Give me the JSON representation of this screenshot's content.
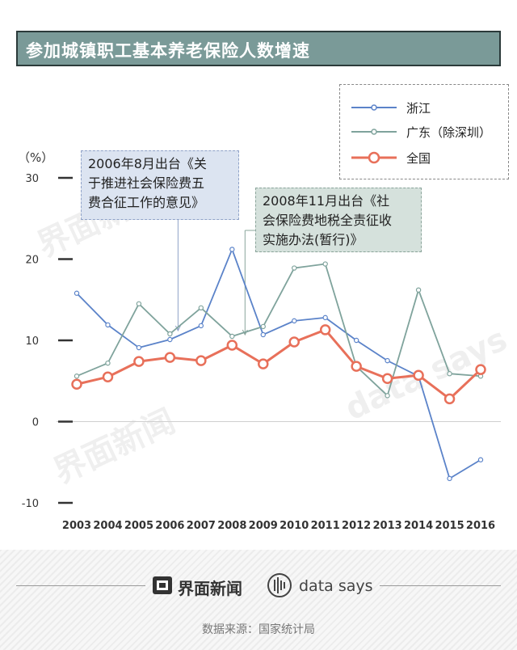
{
  "header": {
    "title": "参加城镇职工基本养老保险人数增速"
  },
  "unit_label": "（%）",
  "watermarks": [
    "界面新闻",
    "data says"
  ],
  "annotations": [
    {
      "text_lines": [
        "2006年8月出台《关",
        "于推进社会保险费五",
        "费合征工作的意见》"
      ]
    },
    {
      "text_lines": [
        "2008年11月出台《社",
        "会保险费地税全责征收",
        "实施办法(暂行)》"
      ]
    }
  ],
  "footer": {
    "brand_jiemian": "界面新闻",
    "brand_datasays": "data says",
    "source": "数据来源：国家统计局"
  },
  "colors": {
    "zhejiang": "#5b83c9",
    "guangdong": "#7fa39c",
    "national": "#e8705a",
    "title_bg": "#7a9a98"
  },
  "chart_data": {
    "type": "line",
    "x": [
      "2003",
      "2004",
      "2005",
      "2006",
      "2007",
      "2008",
      "2009",
      "2010",
      "2011",
      "2012",
      "2013",
      "2014",
      "2015",
      "2016"
    ],
    "ylim": [
      -10,
      30
    ],
    "yticks": [
      "30",
      "20",
      "10",
      "0",
      "-10"
    ],
    "legend_position": "top-right",
    "series": [
      {
        "name": "浙江",
        "color": "#5b83c9",
        "values": [
          15.8,
          11.9,
          9.1,
          10.1,
          11.8,
          21.2,
          10.7,
          12.4,
          12.8,
          10.0,
          7.5,
          5.6,
          -7.0,
          -4.7
        ]
      },
      {
        "name": "广东（除深圳）",
        "color": "#7fa39c",
        "values": [
          5.6,
          7.2,
          14.5,
          10.8,
          14.0,
          10.5,
          11.7,
          18.9,
          19.4,
          6.8,
          3.2,
          16.2,
          5.9,
          5.6
        ]
      },
      {
        "name": "全国",
        "color": "#e8705a",
        "values": [
          4.6,
          5.5,
          7.4,
          7.9,
          7.5,
          9.4,
          7.1,
          9.8,
          11.3,
          6.8,
          5.3,
          5.7,
          2.8,
          6.4
        ]
      }
    ]
  }
}
